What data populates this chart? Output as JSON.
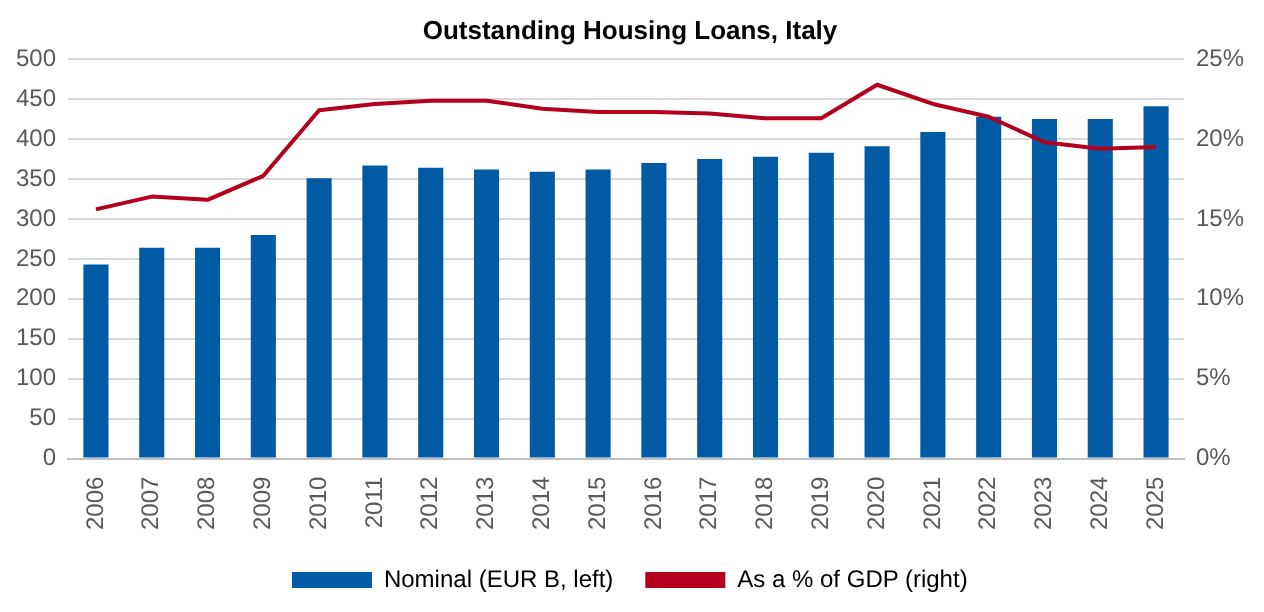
{
  "chart_data": {
    "type": "bar",
    "title": "Outstanding Housing Loans, Italy",
    "categories": [
      "2006",
      "2007",
      "2008",
      "2009",
      "2010",
      "2011",
      "2012",
      "2013",
      "2014",
      "2015",
      "2016",
      "2017",
      "2018",
      "2019",
      "2020",
      "2021",
      "2022",
      "2023",
      "2024",
      "2025"
    ],
    "series": [
      {
        "name": "Nominal (EUR B, left)",
        "color": "#005ba4",
        "values": [
          243,
          264,
          264,
          280,
          351,
          367,
          364,
          362,
          359,
          362,
          370,
          375,
          378,
          383,
          391,
          409,
          428,
          425,
          425,
          441
        ]
      },
      {
        "name": "As a % of GDP (right)",
        "type": "line",
        "axis": "y2",
        "color": "#b2001e",
        "values": [
          15.6,
          16.4,
          16.2,
          17.7,
          21.8,
          22.2,
          22.4,
          22.4,
          21.9,
          21.7,
          21.7,
          21.6,
          21.3,
          21.3,
          23.4,
          22.2,
          21.4,
          19.8,
          19.4,
          19.5
        ]
      }
    ],
    "ylim": [
      0,
      500
    ],
    "yticks": [
      0,
      50,
      100,
      150,
      200,
      250,
      300,
      350,
      400,
      450,
      500
    ],
    "y2lim": [
      0,
      25
    ],
    "y2ticks": [
      {
        "value": 0,
        "label": "0%"
      },
      {
        "value": 5,
        "label": "5%"
      },
      {
        "value": 10,
        "label": "10%"
      },
      {
        "value": 15,
        "label": "15%"
      },
      {
        "value": 20,
        "label": "20%"
      },
      {
        "value": 25,
        "label": "25%"
      }
    ],
    "grid": "y",
    "legend": "bottom",
    "marker": "none",
    "line_style": "solid"
  }
}
